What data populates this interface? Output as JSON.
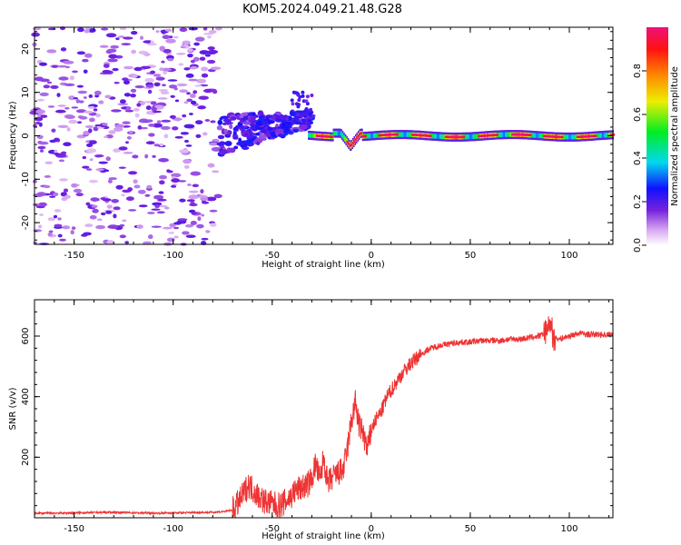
{
  "figure": {
    "title": "KOM5.2024.049.21.48.G28"
  },
  "chart_data": [
    {
      "type": "heatmap",
      "xlabel": "Height of straight line (km)",
      "ylabel": "Frequency (Hz)",
      "xlim": [
        -170,
        122
      ],
      "ylim": [
        -25,
        25
      ],
      "xticks": [
        -150,
        -100,
        -50,
        0,
        50,
        100
      ],
      "yticks": [
        -20,
        -10,
        0,
        10,
        20
      ],
      "colorbar": {
        "label": "Normalized spectral amplitude",
        "range": [
          0,
          1
        ],
        "ticks": [
          0.0,
          0.2,
          0.4,
          0.6,
          0.8
        ],
        "colormap": "rainbow (white-violet-blue-cyan-green-yellow-orange-red-pink)"
      },
      "features": [
        {
          "region": "noise",
          "x_range": [
            -170,
            -77
          ],
          "freq_range": [
            -25,
            25
          ],
          "amplitude": 0.1
        },
        {
          "region": "onset",
          "x_range": [
            -77,
            -30
          ],
          "freq_range": [
            -7,
            10
          ],
          "amplitude": 0.2
        },
        {
          "region": "signal",
          "x_range": [
            -30,
            122
          ],
          "freq_near": 0,
          "amplitude": 0.9
        }
      ]
    },
    {
      "type": "line",
      "xlabel": "Height of straight line (km)",
      "ylabel": "SNR (v/v)",
      "xlim": [
        -170,
        122
      ],
      "ylim": [
        0,
        720
      ],
      "xticks": [
        -150,
        -100,
        -50,
        0,
        50,
        100
      ],
      "yticks": [
        200,
        400,
        600
      ],
      "color": "#ee3333",
      "series": [
        {
          "x": [
            -170,
            -150,
            -130,
            -110,
            -90,
            -80,
            -75,
            -70,
            -66,
            -62,
            -58,
            -54,
            -50,
            -46,
            -42,
            -38,
            -35,
            -32,
            -30,
            -28,
            -26,
            -24,
            -22,
            -20,
            -18,
            -16,
            -14,
            -12,
            -10,
            -8,
            -6,
            -4,
            -2,
            0,
            2,
            5,
            8,
            12,
            16,
            20,
            25,
            30,
            35,
            40,
            45,
            50,
            55,
            60,
            65,
            70,
            75,
            80,
            85,
            88,
            90,
            92,
            95,
            100,
            105,
            110,
            115,
            122
          ],
          "y": [
            15,
            16,
            18,
            15,
            17,
            18,
            20,
            25,
            60,
            110,
            80,
            55,
            45,
            40,
            60,
            90,
            100,
            110,
            130,
            180,
            120,
            200,
            110,
            130,
            140,
            150,
            160,
            230,
            320,
            380,
            300,
            280,
            220,
            290,
            320,
            350,
            400,
            440,
            480,
            510,
            540,
            560,
            570,
            575,
            580,
            580,
            585,
            585,
            585,
            590,
            590,
            595,
            600,
            610,
            640,
            600,
            590,
            600,
            610,
            605,
            605,
            605
          ]
        }
      ]
    }
  ]
}
